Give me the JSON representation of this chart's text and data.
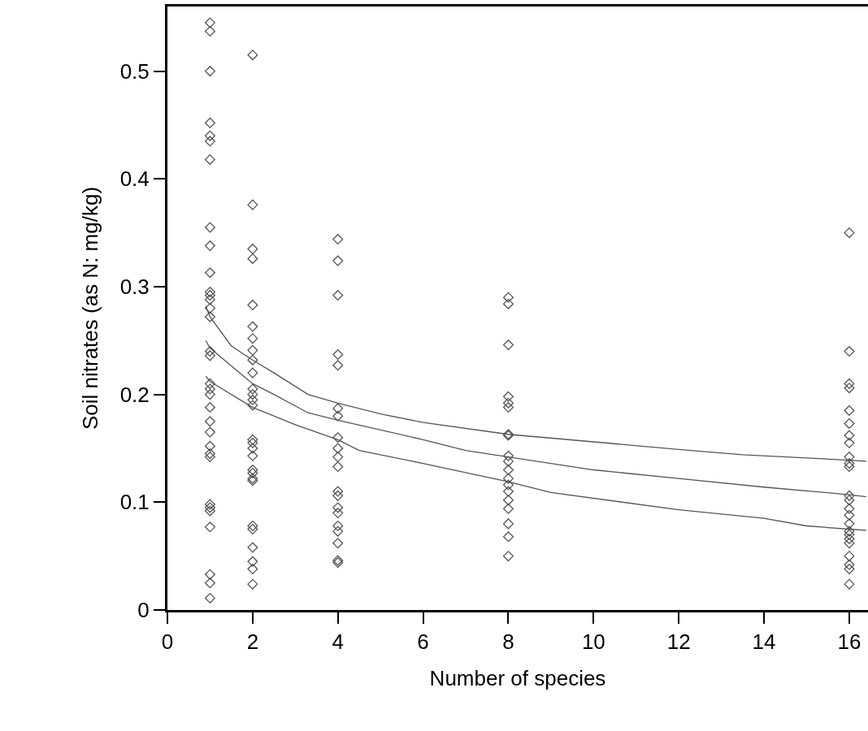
{
  "chart_data": {
    "type": "scatter",
    "xlabel": "Number of species",
    "ylabel": "Soil nitrates (as N: mg/kg)",
    "xlim": [
      0,
      16.44
    ],
    "ylim": [
      0,
      0.56
    ],
    "xticks": [
      0,
      2,
      4,
      6,
      8,
      10,
      12,
      14,
      16
    ],
    "yticks": [
      0,
      0.1,
      0.2,
      0.3,
      0.4,
      0.5
    ],
    "grid": false,
    "marker": "diamond",
    "series": [
      {
        "color": "#555555",
        "x": [
          1,
          1,
          1,
          1,
          1,
          1,
          1,
          1,
          1,
          1,
          1,
          1,
          1,
          1,
          1,
          1,
          1,
          1,
          1,
          1,
          1,
          1,
          1,
          1,
          1,
          1,
          1,
          1,
          1,
          1,
          1,
          1,
          1
        ],
        "values": [
          0.545,
          0.537,
          0.5,
          0.452,
          0.44,
          0.435,
          0.418,
          0.355,
          0.338,
          0.313,
          0.295,
          0.292,
          0.288,
          0.28,
          0.272,
          0.24,
          0.236,
          0.21,
          0.205,
          0.2,
          0.188,
          0.175,
          0.165,
          0.152,
          0.145,
          0.142,
          0.098,
          0.095,
          0.092,
          0.077,
          0.033,
          0.025,
          0.011
        ]
      },
      {
        "color": "#555555",
        "x": [
          2,
          2,
          2,
          2,
          2,
          2,
          2,
          2,
          2,
          2,
          2,
          2,
          2,
          2,
          2,
          2,
          2,
          2,
          2,
          2,
          2,
          2,
          2,
          2,
          2,
          2,
          2,
          2
        ],
        "values": [
          0.515,
          0.376,
          0.335,
          0.326,
          0.283,
          0.263,
          0.252,
          0.241,
          0.232,
          0.22,
          0.205,
          0.2,
          0.195,
          0.19,
          0.158,
          0.155,
          0.15,
          0.143,
          0.13,
          0.127,
          0.122,
          0.12,
          0.078,
          0.075,
          0.058,
          0.045,
          0.038,
          0.024
        ]
      },
      {
        "color": "#555555",
        "x": [
          4,
          4,
          4,
          4,
          4,
          4,
          4,
          4,
          4,
          4,
          4,
          4,
          4,
          4,
          4,
          4,
          4,
          4,
          4,
          4
        ],
        "values": [
          0.344,
          0.324,
          0.292,
          0.237,
          0.227,
          0.187,
          0.18,
          0.16,
          0.15,
          0.142,
          0.133,
          0.11,
          0.106,
          0.095,
          0.09,
          0.078,
          0.073,
          0.062,
          0.046,
          0.044
        ]
      },
      {
        "color": "#555555",
        "x": [
          8,
          8,
          8,
          8,
          8,
          8,
          8,
          8,
          8,
          8,
          8,
          8,
          8,
          8,
          8,
          8,
          8,
          8,
          8
        ],
        "values": [
          0.29,
          0.284,
          0.246,
          0.198,
          0.192,
          0.188,
          0.163,
          0.162,
          0.143,
          0.138,
          0.13,
          0.122,
          0.116,
          0.11,
          0.102,
          0.094,
          0.08,
          0.068,
          0.05
        ]
      },
      {
        "color": "#555555",
        "x": [
          16,
          16,
          16,
          16,
          16,
          16,
          16,
          16,
          16,
          16,
          16,
          16,
          16,
          16,
          16,
          16,
          16,
          16,
          16,
          16,
          16,
          16,
          16,
          16
        ],
        "values": [
          0.35,
          0.24,
          0.21,
          0.206,
          0.185,
          0.173,
          0.162,
          0.155,
          0.142,
          0.136,
          0.133,
          0.106,
          0.102,
          0.094,
          0.088,
          0.08,
          0.073,
          0.07,
          0.066,
          0.062,
          0.05,
          0.042,
          0.038,
          0.024
        ]
      },
      {
        "type": "line",
        "color": "#555555",
        "marker": "none",
        "x": [
          0.9,
          1,
          1.5,
          2,
          2.5,
          3.3,
          4,
          5,
          6,
          8,
          10,
          12,
          13.5,
          16,
          16.4
        ],
        "values": [
          0.282,
          0.272,
          0.245,
          0.232,
          0.22,
          0.2,
          0.192,
          0.182,
          0.174,
          0.163,
          0.156,
          0.149,
          0.144,
          0.139,
          0.138
        ]
      },
      {
        "type": "line",
        "color": "#555555",
        "marker": "none",
        "x": [
          0.9,
          1,
          2,
          2.5,
          3.3,
          4,
          6,
          7,
          8,
          10,
          12,
          14,
          16,
          16.4
        ],
        "values": [
          0.25,
          0.243,
          0.21,
          0.2,
          0.183,
          0.176,
          0.158,
          0.148,
          0.142,
          0.13,
          0.122,
          0.114,
          0.107,
          0.105
        ]
      },
      {
        "type": "line",
        "color": "#555555",
        "marker": "none",
        "x": [
          0.9,
          1,
          2,
          3,
          4,
          4.5,
          6,
          8,
          9,
          12,
          14,
          15,
          16,
          16.4
        ],
        "values": [
          0.217,
          0.212,
          0.188,
          0.172,
          0.158,
          0.148,
          0.136,
          0.119,
          0.109,
          0.093,
          0.085,
          0.078,
          0.075,
          0.074
        ]
      }
    ]
  }
}
